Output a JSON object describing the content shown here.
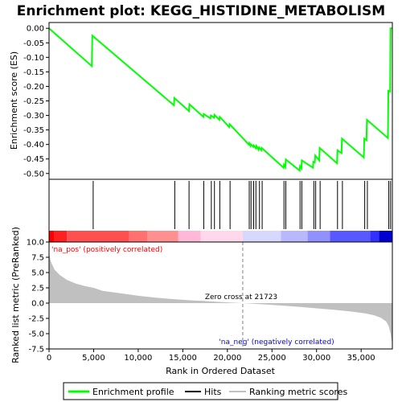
{
  "chart_data": {
    "type": "line",
    "title": "Enrichment plot: KEGG_HISTIDINE_METABOLISM",
    "xlabel": "Rank in Ordered Dataset",
    "colors": {
      "profile": "#00ff00",
      "hits": "#000000",
      "metric_fill": "#c0c0c0",
      "zero_line": "#808080",
      "pos_label": "#ff0000",
      "neg_label": "#0000ff",
      "frame": "#000000"
    },
    "top_panel": {
      "ylabel": "Enrichment score (ES)",
      "xlim": [
        0,
        38500
      ],
      "ylim": [
        -0.52,
        0.02
      ],
      "yticks": [
        0.0,
        -0.05,
        -0.1,
        -0.15,
        -0.2,
        -0.25,
        -0.3,
        -0.35,
        -0.4,
        -0.45,
        -0.5
      ],
      "ytick_labels": [
        "0.00",
        "-0.05",
        "-0.10",
        "-0.15",
        "-0.20",
        "-0.25",
        "-0.30",
        "-0.35",
        "-0.40",
        "-0.45",
        "-0.50"
      ],
      "grid": false,
      "series": [
        {
          "x": [
            0,
            4800,
            4850,
            14000,
            14050,
            15700,
            15750,
            17300,
            17350,
            18100,
            18150,
            18500,
            18550,
            19100,
            19150,
            20200,
            20250,
            22400,
            22450,
            22600,
            22650,
            22900,
            22950,
            23200,
            23250,
            23500,
            23550,
            23800,
            23850,
            26300,
            26350,
            26500,
            26550,
            28100,
            28150,
            28300,
            28350,
            29600,
            29650,
            29800,
            29850,
            30300,
            30350,
            32300,
            32350,
            32800,
            32850,
            35300,
            35350,
            35600,
            35650,
            38000,
            38050,
            38250,
            38300,
            38500
          ],
          "y": [
            0.0,
            -0.13,
            -0.025,
            -0.265,
            -0.24,
            -0.285,
            -0.262,
            -0.305,
            -0.295,
            -0.31,
            -0.3,
            -0.308,
            -0.298,
            -0.315,
            -0.305,
            -0.34,
            -0.33,
            -0.4,
            -0.395,
            -0.405,
            -0.4,
            -0.408,
            -0.403,
            -0.413,
            -0.405,
            -0.418,
            -0.41,
            -0.42,
            -0.412,
            -0.48,
            -0.47,
            -0.478,
            -0.452,
            -0.49,
            -0.475,
            -0.482,
            -0.455,
            -0.48,
            -0.46,
            -0.462,
            -0.438,
            -0.455,
            -0.412,
            -0.465,
            -0.42,
            -0.43,
            -0.38,
            -0.445,
            -0.38,
            -0.385,
            -0.315,
            -0.378,
            -0.215,
            -0.218,
            0.0,
            0.0
          ]
        }
      ]
    },
    "hits_panel": {
      "hit_ranks": [
        4950,
        14100,
        15700,
        17350,
        18200,
        18550,
        19150,
        20300,
        22450,
        22650,
        22950,
        23200,
        23600,
        23900,
        26350,
        26550,
        28150,
        28350,
        29700,
        29900,
        30400,
        32350,
        32900,
        35400,
        35700,
        38100,
        38300
      ],
      "heatmap": {
        "description_colors": [
          "#ff0000",
          "#ff4040",
          "#ff8080",
          "#ffb0c8",
          "#ffd0e0",
          "#d8d8ff",
          "#a0a0ff",
          "#5050ff",
          "#0000ff",
          "#0000c0"
        ],
        "bands": [
          {
            "start": 0,
            "end": 600,
            "color": "#ff0000"
          },
          {
            "start": 600,
            "end": 2000,
            "color": "#ff2020"
          },
          {
            "start": 2000,
            "end": 9000,
            "color": "#ff5050"
          },
          {
            "start": 9000,
            "end": 11000,
            "color": "#ff7070"
          },
          {
            "start": 11000,
            "end": 14500,
            "color": "#ff9090"
          },
          {
            "start": 14500,
            "end": 17000,
            "color": "#ffb8d8"
          },
          {
            "start": 17000,
            "end": 21723,
            "color": "#ffd8ec"
          },
          {
            "start": 21723,
            "end": 26000,
            "color": "#d8d8ff"
          },
          {
            "start": 26000,
            "end": 29000,
            "color": "#b8b8ff"
          },
          {
            "start": 29000,
            "end": 31500,
            "color": "#9090ff"
          },
          {
            "start": 31500,
            "end": 36000,
            "color": "#5858ff"
          },
          {
            "start": 36000,
            "end": 37000,
            "color": "#3030ff"
          },
          {
            "start": 37000,
            "end": 38500,
            "color": "#0000d0"
          }
        ]
      }
    },
    "metric_panel": {
      "ylabel": "Ranked list metric (PreRanked)",
      "ylim": [
        -7.5,
        10.0
      ],
      "yticks": [
        10.0,
        7.5,
        5.0,
        2.5,
        0.0,
        -2.5,
        -5.0,
        -7.5
      ],
      "ytick_labels": [
        "10.0",
        "7.5",
        "5.0",
        "2.5",
        "0.0",
        "-2.5",
        "-5.0",
        "-7.5"
      ],
      "x": [
        0,
        200,
        600,
        1200,
        2000,
        3000,
        4000,
        5000,
        6000,
        8000,
        10000,
        12000,
        14000,
        16000,
        18000,
        20000,
        21723,
        24000,
        26000,
        28000,
        30000,
        32000,
        34000,
        35500,
        36500,
        37200,
        37800,
        38100,
        38300,
        38500
      ],
      "y": [
        8.2,
        6.8,
        5.5,
        4.6,
        3.8,
        3.2,
        2.8,
        2.5,
        2.0,
        1.6,
        1.2,
        0.9,
        0.65,
        0.45,
        0.3,
        0.12,
        0.0,
        -0.2,
        -0.4,
        -0.6,
        -0.85,
        -1.1,
        -1.4,
        -1.7,
        -2.0,
        -2.4,
        -3.0,
        -3.8,
        -5.0,
        -6.8
      ],
      "zero_cross_rank": 21723,
      "zero_cross_label": "Zero cross at 21723",
      "pos_label": "'na_pos' (positively correlated)",
      "neg_label": "'na_neg' (negatively correlated)"
    },
    "xticks": [
      0,
      5000,
      10000,
      15000,
      20000,
      25000,
      30000,
      35000
    ],
    "xtick_labels": [
      "0",
      "5,000",
      "10,000",
      "15,000",
      "20,000",
      "25,000",
      "30,000",
      "35,000"
    ],
    "legend": {
      "placement": "bottom",
      "entries": [
        "Enrichment profile",
        "Hits",
        "Ranking metric scores"
      ]
    }
  }
}
